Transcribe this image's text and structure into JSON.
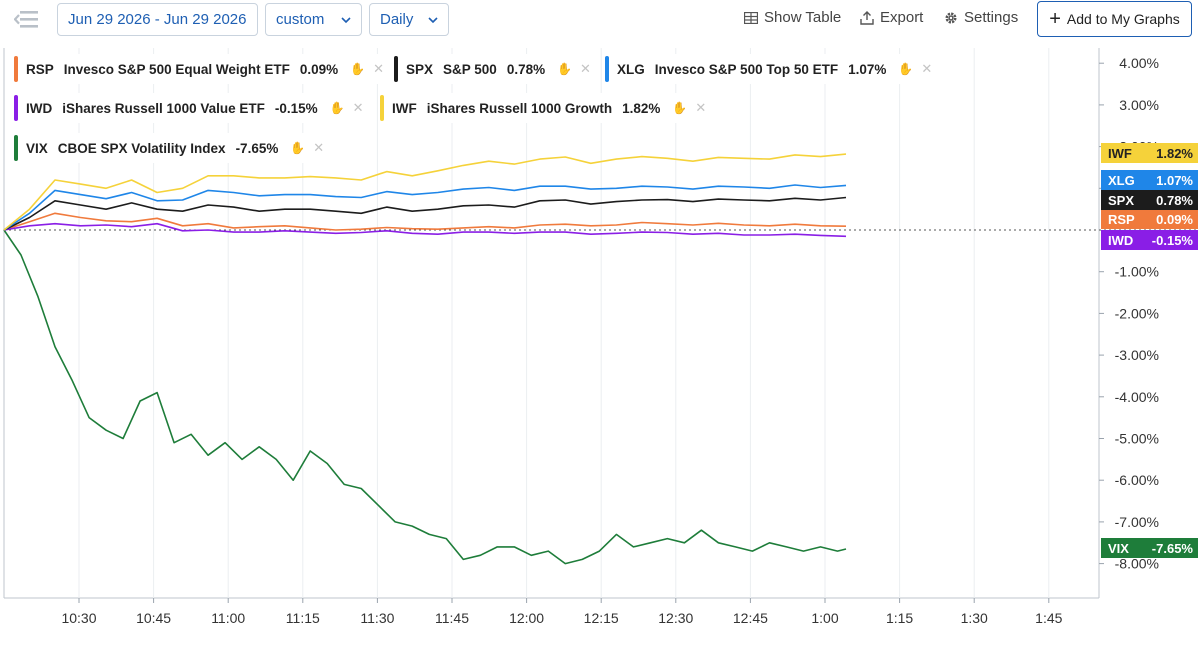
{
  "toolbar": {
    "date_range": "Jun 29 2026 - Jun 29 2026",
    "range_mode": "custom",
    "interval": "Daily",
    "show_table": "Show Table",
    "export": "Export",
    "settings": "Settings",
    "add_to_graphs": "Add to My Graphs"
  },
  "chart_data": {
    "type": "line",
    "x_ticks": [
      "10:30",
      "10:45",
      "11:00",
      "11:15",
      "11:30",
      "11:45",
      "12:00",
      "12:15",
      "12:30",
      "12:45",
      "1:00",
      "1:15",
      "1:30",
      "1:45"
    ],
    "x_range": [
      "10:18",
      "1:50"
    ],
    "y_ticks": [
      "4.00%",
      "3.00%",
      "2.00%",
      "1.00%",
      "-1.00%",
      "-2.00%",
      "-3.00%",
      "-4.00%",
      "-5.00%",
      "-6.00%",
      "-7.00%",
      "-8.00%"
    ],
    "ylim": [
      -8.4,
      4.3
    ],
    "zero_line": true,
    "grid": "vertical",
    "series": [
      {
        "symbol": "RSP",
        "name": "Invesco S&P 500 Equal Weight ETF",
        "change": "0.09%",
        "color": "#f07a3c",
        "x": [
          0,
          3,
          6,
          9,
          12,
          15,
          18,
          21,
          24,
          27,
          30,
          33,
          36,
          39,
          42,
          45,
          48,
          51,
          54,
          57,
          60,
          63,
          66,
          69,
          72,
          75,
          78,
          81,
          84,
          87,
          90,
          93,
          96,
          99
        ],
        "values": [
          0.0,
          0.2,
          0.4,
          0.3,
          0.22,
          0.2,
          0.28,
          0.1,
          0.15,
          0.05,
          0.08,
          0.1,
          0.05,
          0.0,
          0.02,
          0.06,
          0.03,
          0.02,
          0.05,
          0.08,
          0.05,
          0.12,
          0.14,
          0.1,
          0.12,
          0.18,
          0.15,
          0.12,
          0.16,
          0.12,
          0.1,
          0.14,
          0.1,
          0.09
        ]
      },
      {
        "symbol": "SPX",
        "name": "S&P 500",
        "change": "0.78%",
        "color": "#1c1c1c",
        "x": [
          0,
          3,
          6,
          9,
          12,
          15,
          18,
          21,
          24,
          27,
          30,
          33,
          36,
          39,
          42,
          45,
          48,
          51,
          54,
          57,
          60,
          63,
          66,
          69,
          72,
          75,
          78,
          81,
          84,
          87,
          90,
          93,
          96,
          99
        ],
        "values": [
          0.0,
          0.3,
          0.7,
          0.6,
          0.5,
          0.65,
          0.5,
          0.45,
          0.6,
          0.55,
          0.45,
          0.5,
          0.5,
          0.45,
          0.4,
          0.55,
          0.45,
          0.5,
          0.58,
          0.6,
          0.55,
          0.7,
          0.72,
          0.62,
          0.68,
          0.72,
          0.73,
          0.68,
          0.74,
          0.72,
          0.7,
          0.76,
          0.72,
          0.78
        ]
      },
      {
        "symbol": "XLG",
        "name": "Invesco S&P 500 Top 50 ETF",
        "change": "1.07%",
        "color": "#1f86e8",
        "x": [
          0,
          3,
          6,
          9,
          12,
          15,
          18,
          21,
          24,
          27,
          30,
          33,
          36,
          39,
          42,
          45,
          48,
          51,
          54,
          57,
          60,
          63,
          66,
          69,
          72,
          75,
          78,
          81,
          84,
          87,
          90,
          93,
          96,
          99
        ],
        "values": [
          0.0,
          0.4,
          0.95,
          0.85,
          0.75,
          0.9,
          0.7,
          0.72,
          0.95,
          0.9,
          0.82,
          0.85,
          0.85,
          0.8,
          0.78,
          0.92,
          0.85,
          0.9,
          0.98,
          1.02,
          0.95,
          1.05,
          1.05,
          0.98,
          1.0,
          1.05,
          1.03,
          0.98,
          1.05,
          1.03,
          1.0,
          1.08,
          1.02,
          1.07
        ]
      },
      {
        "symbol": "IWD",
        "name": "iShares Russell 1000 Value ETF",
        "change": "-0.15%",
        "color": "#8a1ee6",
        "x": [
          0,
          3,
          6,
          9,
          12,
          15,
          18,
          21,
          24,
          27,
          30,
          33,
          36,
          39,
          42,
          45,
          48,
          51,
          54,
          57,
          60,
          63,
          66,
          69,
          72,
          75,
          78,
          81,
          84,
          87,
          90,
          93,
          96,
          99
        ],
        "values": [
          0.0,
          0.1,
          0.15,
          0.1,
          0.12,
          0.08,
          0.15,
          -0.02,
          0.0,
          -0.05,
          -0.05,
          -0.02,
          -0.05,
          -0.08,
          -0.06,
          -0.02,
          -0.08,
          -0.1,
          -0.05,
          -0.05,
          -0.08,
          -0.05,
          -0.05,
          -0.1,
          -0.08,
          -0.05,
          -0.06,
          -0.1,
          -0.08,
          -0.12,
          -0.12,
          -0.1,
          -0.13,
          -0.15
        ]
      },
      {
        "symbol": "IWF",
        "name": "iShares Russell 1000 Growth",
        "change": "1.82%",
        "color": "#f5d23a",
        "x": [
          0,
          3,
          6,
          9,
          12,
          15,
          18,
          21,
          24,
          27,
          30,
          33,
          36,
          39,
          42,
          45,
          48,
          51,
          54,
          57,
          60,
          63,
          66,
          69,
          72,
          75,
          78,
          81,
          84,
          87,
          90,
          93,
          96,
          99
        ],
        "values": [
          0.0,
          0.5,
          1.2,
          1.1,
          1.0,
          1.2,
          0.9,
          1.0,
          1.3,
          1.3,
          1.25,
          1.25,
          1.28,
          1.25,
          1.2,
          1.4,
          1.3,
          1.42,
          1.55,
          1.65,
          1.58,
          1.7,
          1.75,
          1.6,
          1.7,
          1.76,
          1.72,
          1.65,
          1.74,
          1.72,
          1.7,
          1.8,
          1.76,
          1.82
        ]
      },
      {
        "symbol": "VIX",
        "name": "CBOE SPX Volatility Index",
        "change": "-7.65%",
        "color": "#1e7d3a",
        "x": [
          0,
          2,
          4,
          6,
          8,
          10,
          12,
          14,
          16,
          18,
          20,
          22,
          24,
          26,
          28,
          30,
          32,
          34,
          36,
          38,
          40,
          42,
          44,
          46,
          48,
          50,
          52,
          54,
          56,
          58,
          60,
          62,
          64,
          66,
          68,
          70,
          72,
          74,
          76,
          78,
          80,
          82,
          84,
          86,
          88,
          90,
          92,
          94,
          96,
          98,
          99
        ],
        "values": [
          0.0,
          -0.6,
          -1.6,
          -2.8,
          -3.6,
          -4.5,
          -4.8,
          -5.0,
          -4.1,
          -3.9,
          -5.1,
          -4.9,
          -5.4,
          -5.1,
          -5.5,
          -5.2,
          -5.5,
          -6.0,
          -5.3,
          -5.6,
          -6.1,
          -6.2,
          -6.6,
          -7.0,
          -7.1,
          -7.3,
          -7.4,
          -7.9,
          -7.8,
          -7.6,
          -7.6,
          -7.8,
          -7.7,
          -8.0,
          -7.9,
          -7.7,
          -7.3,
          -7.6,
          -7.5,
          -7.4,
          -7.5,
          -7.2,
          -7.5,
          -7.6,
          -7.7,
          -7.5,
          -7.6,
          -7.7,
          -7.6,
          -7.7,
          -7.65
        ]
      }
    ]
  }
}
